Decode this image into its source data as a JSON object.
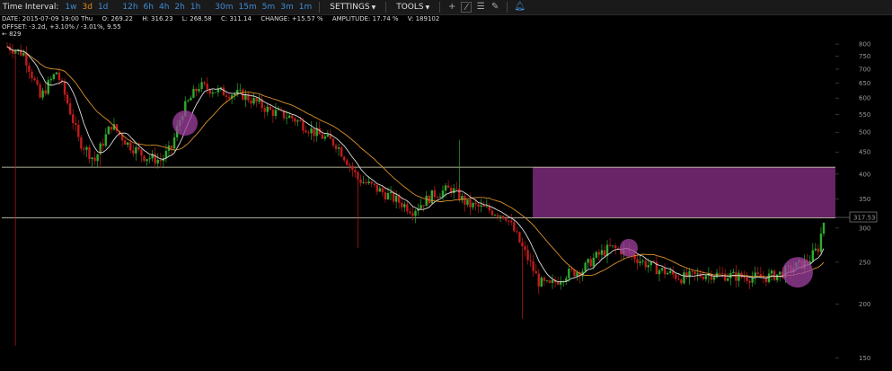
{
  "toolbar": {
    "interval_label": "Time Interval:",
    "intervals": [
      "1w",
      "3d",
      "1d",
      "12h",
      "6h",
      "4h",
      "2h",
      "1h",
      "30m",
      "15m",
      "5m",
      "3m",
      "1m"
    ],
    "active_interval": "3d",
    "settings_label": "SETTINGS",
    "tools_label": "TOOLS",
    "tool_icons": [
      "crosshair-icon",
      "trendline-icon",
      "horizontal-lines-icon",
      "pencil-icon",
      "bell-icon"
    ]
  },
  "info": {
    "date": "DATE: 2015-07-09 19:00 Thu",
    "open": "O: 269.22",
    "high": "H: 316.23",
    "low": "L: 268.58",
    "close": "C: 311.14",
    "change": "CHANGE: +15.57 %",
    "amplitude": "AMPLITUDE: 17.74 %",
    "volume": "V: 189102",
    "offset": "OFFSET: -3.2d, +3.10% / -3.01%, 9.55",
    "high_marker": "← 829"
  },
  "colors": {
    "up": "#2faa2f",
    "down": "#c01c1c",
    "fast_ma": "#dcdcdc",
    "slow_ma": "#d8902e",
    "zone": "#7a2a78",
    "level_line": "#e6e6c8"
  },
  "chart_data": {
    "type": "candlestick",
    "y_scale": "log",
    "ylim": [
      140,
      860
    ],
    "y_ticks": [
      150,
      200,
      250,
      300,
      350,
      400,
      450,
      500,
      550,
      600,
      650,
      700,
      750,
      800
    ],
    "last_price_label": "317.53",
    "horizontal_levels": [
      415,
      317
    ],
    "resistance_zone": {
      "from": 317,
      "to": 415
    },
    "highlight_circles": [
      {
        "near_price": 525,
        "note": "touch of moving averages"
      },
      {
        "near_price": 270,
        "note": "touch of moving averages"
      },
      {
        "near_price": 237,
        "note": "touch of moving averages"
      }
    ],
    "series": [
      {
        "kind": "candles",
        "count": 170,
        "start": 790,
        "end": 311,
        "min": 200,
        "max": 829
      },
      {
        "kind": "moving-average-fast"
      },
      {
        "kind": "moving-average-slow"
      }
    ]
  }
}
